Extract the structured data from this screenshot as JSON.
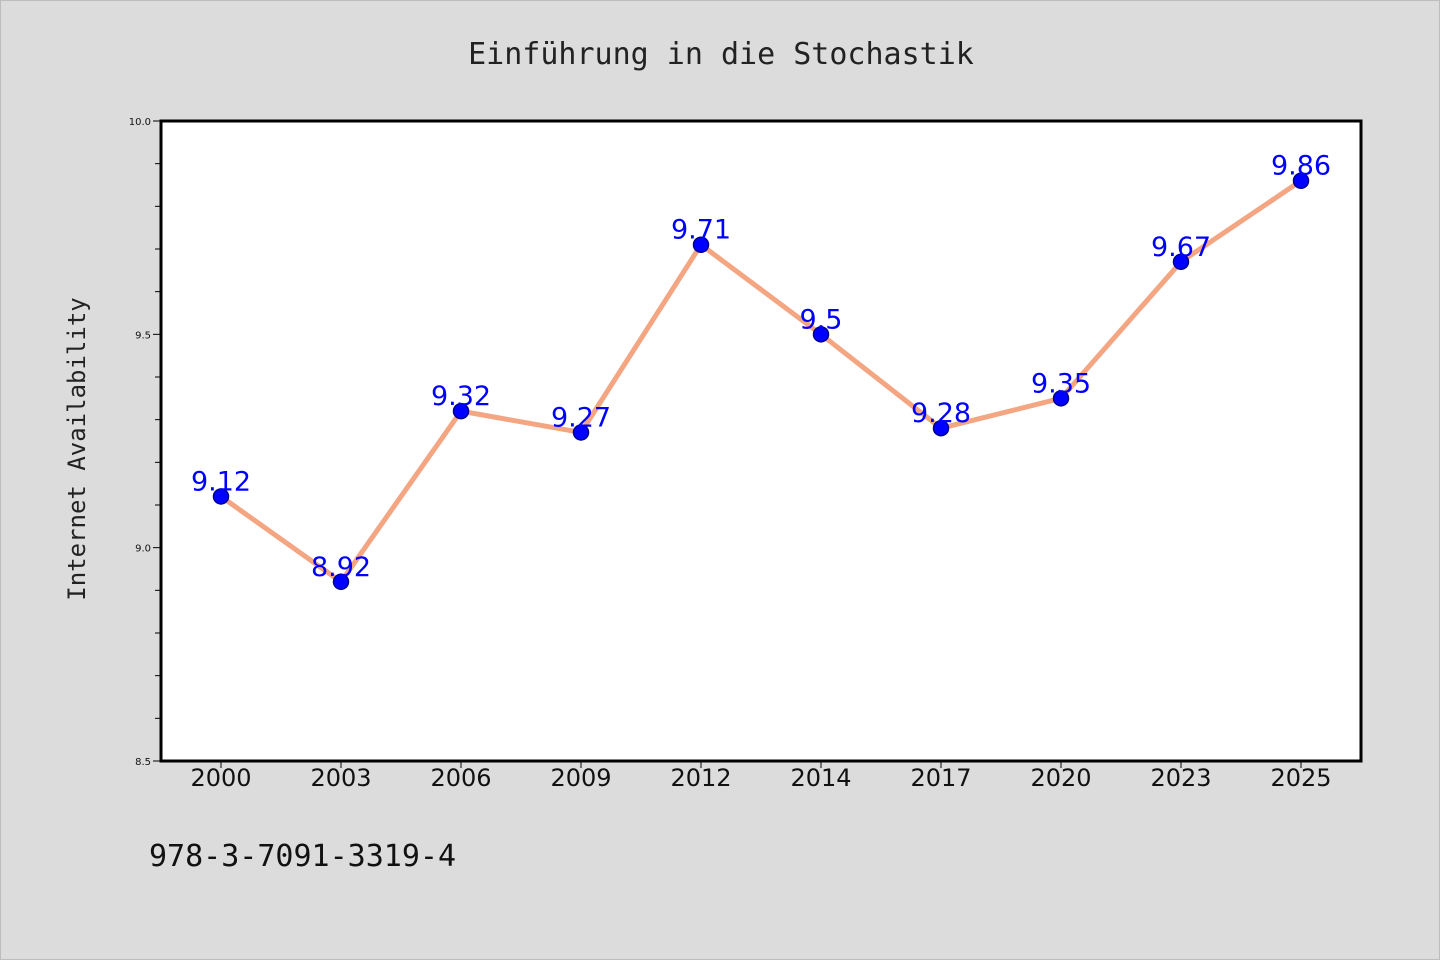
{
  "chart_data": {
    "type": "line",
    "title": "Einführung in die Stochastik",
    "xlabel": "",
    "ylabel": "Internet Availability",
    "categories": [
      "2000",
      "2003",
      "2006",
      "2009",
      "2012",
      "2014",
      "2017",
      "2020",
      "2023",
      "2025"
    ],
    "series": [
      {
        "values": [
          9.12,
          8.92,
          9.32,
          9.27,
          9.71,
          9.5,
          9.28,
          9.35,
          9.67,
          9.86
        ],
        "labels": [
          "9.12",
          "8.92",
          "9.32",
          "9.27",
          "9.71",
          "9.5",
          "9.28",
          "9.35",
          "9.67",
          "9.86"
        ]
      }
    ],
    "ylim": [
      8.5,
      10.0
    ],
    "yticks": [
      "8.5",
      "9.0",
      "9.5",
      "10.0"
    ],
    "grid": false,
    "colors": {
      "line": "#f4a582",
      "marker": "#0000ff",
      "marker_edge": "#00008b",
      "label": "#0000ff",
      "background": "#dcdcdc",
      "plot_background": "#ffffff"
    }
  },
  "footer": {
    "isbn": "978-3-7091-3319-4"
  }
}
